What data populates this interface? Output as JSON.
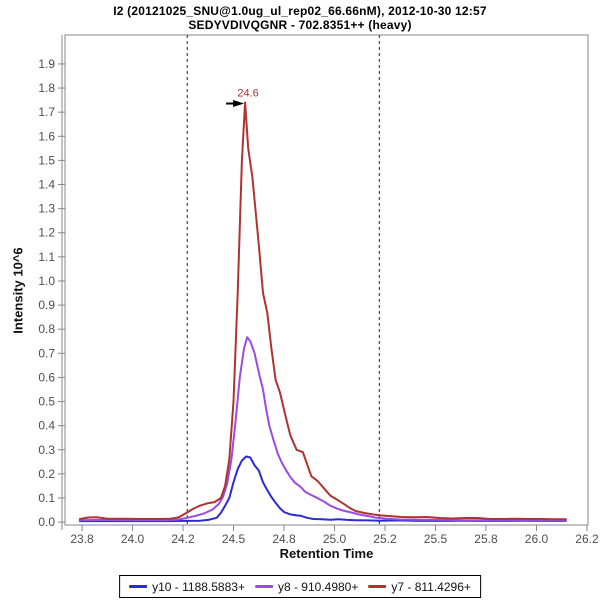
{
  "chart_data": {
    "type": "line",
    "title": "I2 (20121025_SNU@1.0ug_ul_rep02_66.66nM), 2012-10-30 12:57",
    "subtitle": "SEDYVDIVQGNR - 702.8351++ (heavy)",
    "xlabel": "Retention Time",
    "ylabel": "Intensity 10^6",
    "xlim": [
      23.719,
      26.205
    ],
    "ylim": [
      -0.012,
      2.02
    ],
    "grid": false,
    "legend_position": "bottom",
    "frame_color": "#878787",
    "x_ticks": [
      {
        "v": 23.8,
        "label": "23.8"
      },
      {
        "v": 24.04,
        "label": "24.0"
      },
      {
        "v": 24.28,
        "label": "24.2"
      },
      {
        "v": 24.52,
        "label": "24.5"
      },
      {
        "v": 24.76,
        "label": "24.8"
      },
      {
        "v": 25.0,
        "label": "25.0"
      },
      {
        "v": 25.24,
        "label": "25.2"
      },
      {
        "v": 25.48,
        "label": "25.5"
      },
      {
        "v": 25.72,
        "label": "25.8"
      },
      {
        "v": 25.96,
        "label": "26.0"
      },
      {
        "v": 26.2,
        "label": "26.2"
      }
    ],
    "y_ticks": [
      {
        "v": 0.0,
        "label": "0.0"
      },
      {
        "v": 0.1,
        "label": "0.1"
      },
      {
        "v": 0.2,
        "label": "0.2"
      },
      {
        "v": 0.3,
        "label": "0.3"
      },
      {
        "v": 0.4,
        "label": "0.4"
      },
      {
        "v": 0.5,
        "label": "0.5"
      },
      {
        "v": 0.6,
        "label": "0.6"
      },
      {
        "v": 0.7,
        "label": "0.7"
      },
      {
        "v": 0.8,
        "label": "0.8"
      },
      {
        "v": 0.9,
        "label": "0.9"
      },
      {
        "v": 1.0,
        "label": "1.0"
      },
      {
        "v": 1.1,
        "label": "1.1"
      },
      {
        "v": 1.2,
        "label": "1.2"
      },
      {
        "v": 1.3,
        "label": "1.3"
      },
      {
        "v": 1.4,
        "label": "1.4"
      },
      {
        "v": 1.5,
        "label": "1.5"
      },
      {
        "v": 1.6,
        "label": "1.6"
      },
      {
        "v": 1.7,
        "label": "1.7"
      },
      {
        "v": 1.8,
        "label": "1.8"
      },
      {
        "v": 1.9,
        "label": "1.9"
      }
    ],
    "peak_boundaries": {
      "start": 24.3,
      "end": 25.213,
      "line_style": "dashed",
      "color": "#222222"
    },
    "annotation": {
      "text": "24.6",
      "x": 24.575,
      "y": 1.74,
      "color": "#AF3330",
      "arrow_color": "#000000"
    },
    "series": [
      {
        "name": "y10 - 1188.5883+",
        "color": "#2B2BD5",
        "points": [
          [
            23.79,
            0.004
          ],
          [
            23.9,
            0.004
          ],
          [
            24.0,
            0.004
          ],
          [
            24.1,
            0.004
          ],
          [
            24.2,
            0.004
          ],
          [
            24.3,
            0.005
          ],
          [
            24.36,
            0.006
          ],
          [
            24.4,
            0.009
          ],
          [
            24.44,
            0.018
          ],
          [
            24.46,
            0.038
          ],
          [
            24.48,
            0.068
          ],
          [
            24.5,
            0.1
          ],
          [
            24.52,
            0.165
          ],
          [
            24.54,
            0.22
          ],
          [
            24.56,
            0.255
          ],
          [
            24.58,
            0.272
          ],
          [
            24.6,
            0.268
          ],
          [
            24.62,
            0.235
          ],
          [
            24.64,
            0.214
          ],
          [
            24.66,
            0.165
          ],
          [
            24.68,
            0.133
          ],
          [
            24.7,
            0.104
          ],
          [
            24.72,
            0.08
          ],
          [
            24.74,
            0.058
          ],
          [
            24.76,
            0.042
          ],
          [
            24.79,
            0.032
          ],
          [
            24.82,
            0.028
          ],
          [
            24.84,
            0.026
          ],
          [
            24.87,
            0.018
          ],
          [
            24.9,
            0.013
          ],
          [
            24.94,
            0.012
          ],
          [
            24.98,
            0.01
          ],
          [
            25.02,
            0.012
          ],
          [
            25.06,
            0.009
          ],
          [
            25.1,
            0.008
          ],
          [
            25.16,
            0.007
          ],
          [
            25.22,
            0.006
          ],
          [
            25.3,
            0.007
          ],
          [
            25.4,
            0.005
          ],
          [
            25.5,
            0.005
          ],
          [
            25.6,
            0.006
          ],
          [
            25.7,
            0.005
          ],
          [
            25.8,
            0.005
          ],
          [
            25.9,
            0.006
          ],
          [
            26.0,
            0.005
          ],
          [
            26.1,
            0.005
          ]
        ]
      },
      {
        "name": "y8 - 910.4980+",
        "color": "#9B4AE2",
        "points": [
          [
            23.79,
            0.008
          ],
          [
            23.9,
            0.009
          ],
          [
            24.0,
            0.008
          ],
          [
            24.1,
            0.008
          ],
          [
            24.2,
            0.008
          ],
          [
            24.26,
            0.011
          ],
          [
            24.3,
            0.018
          ],
          [
            24.34,
            0.026
          ],
          [
            24.38,
            0.036
          ],
          [
            24.42,
            0.052
          ],
          [
            24.45,
            0.075
          ],
          [
            24.47,
            0.105
          ],
          [
            24.49,
            0.16
          ],
          [
            24.51,
            0.26
          ],
          [
            24.53,
            0.42
          ],
          [
            24.55,
            0.6
          ],
          [
            24.57,
            0.72
          ],
          [
            24.585,
            0.767
          ],
          [
            24.6,
            0.75
          ],
          [
            24.62,
            0.7
          ],
          [
            24.64,
            0.62
          ],
          [
            24.66,
            0.55
          ],
          [
            24.675,
            0.47
          ],
          [
            24.69,
            0.4
          ],
          [
            24.71,
            0.34
          ],
          [
            24.73,
            0.285
          ],
          [
            24.75,
            0.245
          ],
          [
            24.77,
            0.215
          ],
          [
            24.79,
            0.187
          ],
          [
            24.81,
            0.165
          ],
          [
            24.84,
            0.145
          ],
          [
            24.86,
            0.126
          ],
          [
            24.89,
            0.112
          ],
          [
            24.92,
            0.099
          ],
          [
            24.95,
            0.085
          ],
          [
            24.98,
            0.068
          ],
          [
            25.01,
            0.057
          ],
          [
            25.04,
            0.048
          ],
          [
            25.08,
            0.04
          ],
          [
            25.12,
            0.031
          ],
          [
            25.16,
            0.025
          ],
          [
            25.2,
            0.018
          ],
          [
            25.25,
            0.014
          ],
          [
            25.31,
            0.011
          ],
          [
            25.38,
            0.01
          ],
          [
            25.46,
            0.009
          ],
          [
            25.54,
            0.009
          ],
          [
            25.62,
            0.008
          ],
          [
            25.7,
            0.008
          ],
          [
            25.8,
            0.008
          ],
          [
            25.9,
            0.008
          ],
          [
            26.0,
            0.008
          ],
          [
            26.1,
            0.008
          ]
        ]
      },
      {
        "name": "y7 - 811.4296+",
        "color": "#AF3330",
        "points": [
          [
            23.79,
            0.013
          ],
          [
            23.83,
            0.019
          ],
          [
            23.87,
            0.02
          ],
          [
            23.92,
            0.014
          ],
          [
            24.0,
            0.014
          ],
          [
            24.08,
            0.013
          ],
          [
            24.16,
            0.013
          ],
          [
            24.22,
            0.014
          ],
          [
            24.26,
            0.02
          ],
          [
            24.3,
            0.04
          ],
          [
            24.33,
            0.056
          ],
          [
            24.36,
            0.068
          ],
          [
            24.4,
            0.079
          ],
          [
            24.43,
            0.083
          ],
          [
            24.46,
            0.1
          ],
          [
            24.48,
            0.15
          ],
          [
            24.5,
            0.26
          ],
          [
            24.52,
            0.5
          ],
          [
            24.54,
            0.95
          ],
          [
            24.56,
            1.5
          ],
          [
            24.575,
            1.74
          ],
          [
            24.59,
            1.55
          ],
          [
            24.61,
            1.43
          ],
          [
            24.64,
            1.15
          ],
          [
            24.66,
            0.95
          ],
          [
            24.68,
            0.87
          ],
          [
            24.7,
            0.72
          ],
          [
            24.72,
            0.59
          ],
          [
            24.74,
            0.54
          ],
          [
            24.77,
            0.43
          ],
          [
            24.79,
            0.36
          ],
          [
            24.82,
            0.3
          ],
          [
            24.85,
            0.29
          ],
          [
            24.87,
            0.24
          ],
          [
            24.89,
            0.19
          ],
          [
            24.92,
            0.17
          ],
          [
            24.95,
            0.14
          ],
          [
            24.98,
            0.11
          ],
          [
            25.01,
            0.094
          ],
          [
            25.04,
            0.078
          ],
          [
            25.07,
            0.06
          ],
          [
            25.1,
            0.046
          ],
          [
            25.14,
            0.038
          ],
          [
            25.18,
            0.032
          ],
          [
            25.22,
            0.028
          ],
          [
            25.27,
            0.024
          ],
          [
            25.32,
            0.021
          ],
          [
            25.38,
            0.02
          ],
          [
            25.44,
            0.021
          ],
          [
            25.5,
            0.017
          ],
          [
            25.56,
            0.015
          ],
          [
            25.62,
            0.017
          ],
          [
            25.68,
            0.017
          ],
          [
            25.74,
            0.013
          ],
          [
            25.8,
            0.013
          ],
          [
            25.86,
            0.014
          ],
          [
            25.92,
            0.013
          ],
          [
            25.98,
            0.013
          ],
          [
            26.04,
            0.012
          ],
          [
            26.1,
            0.012
          ]
        ]
      }
    ]
  }
}
